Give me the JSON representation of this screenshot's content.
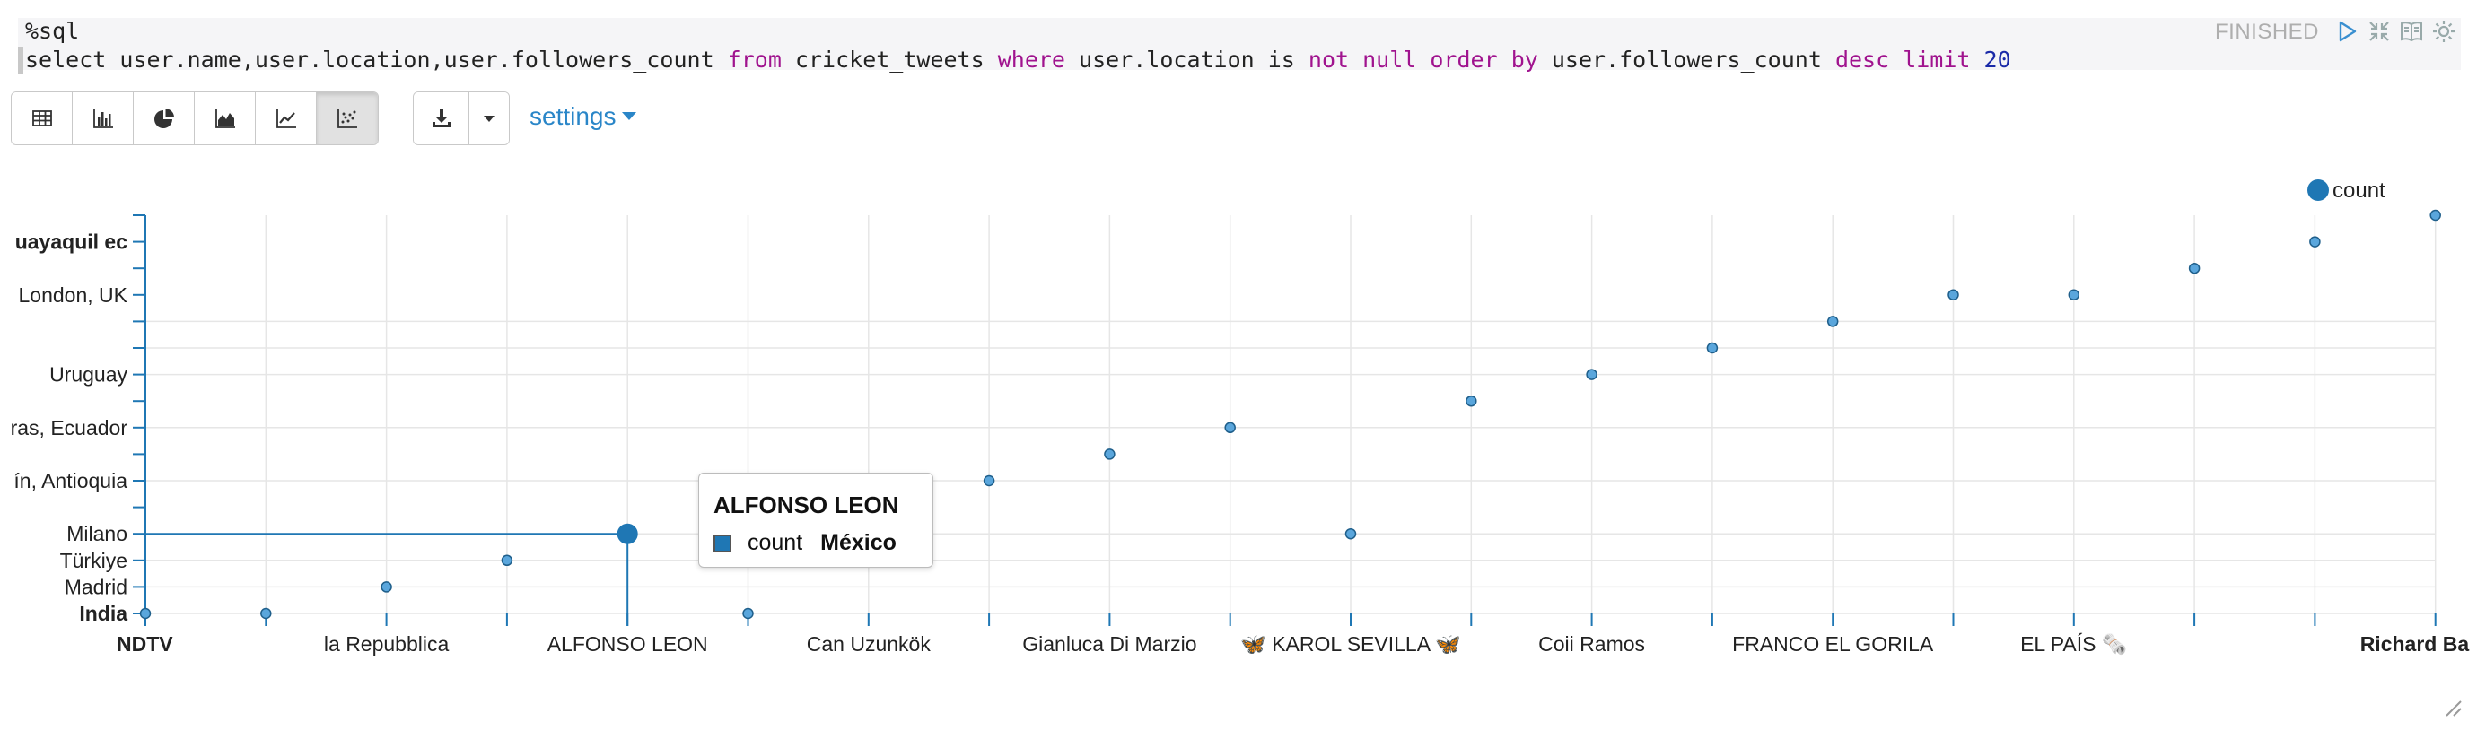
{
  "paragraph": {
    "interpreter": "%sql",
    "query": {
      "t1": "select user.name,user.location,user.followers_count ",
      "k1": "from",
      "t2": " cricket_tweets ",
      "k2": "where",
      "t3": " user.location is ",
      "k3": "not null order by",
      "t4": " user.followers_count ",
      "k4": "desc limit",
      "t5": " ",
      "n1": "20"
    },
    "status": "FINISHED",
    "controls": [
      "run-icon",
      "collapse-icon",
      "book-icon",
      "gear-icon"
    ]
  },
  "toolbar": {
    "views": [
      "table-icon",
      "bar-chart-icon",
      "pie-chart-icon",
      "area-chart-icon",
      "line-chart-icon",
      "scatter-chart-icon"
    ],
    "active_view": "scatter-chart-icon",
    "download": "download-icon",
    "settings_label": "settings"
  },
  "chart_data": {
    "type": "scatter",
    "legend": [
      "count"
    ],
    "color": "#1f77b4",
    "x_categories": [
      "NDTV",
      "",
      "la Repubblica",
      "",
      "ALFONSO LEON",
      "",
      "Can Uzunkök",
      "",
      "Gianluca Di Marzio",
      "",
      "🦋 KAROL SEVILLA 🦋",
      "",
      "Coii Ramos",
      "",
      "FRANCO EL GORILA",
      "",
      "EL PAÍS 🗞️",
      "",
      "",
      "Richard Ba"
    ],
    "y_categories": [
      "India",
      "Madrid",
      "Türkiye",
      "Milano",
      "ín, Antioquia",
      "ras, Ecuador",
      "Uruguay",
      "London, UK",
      "uayaquil ec"
    ],
    "y_minor_levels": 15,
    "points": [
      {
        "x": 0,
        "y": 0
      },
      {
        "x": 1,
        "y": 0
      },
      {
        "x": 2,
        "y": 1
      },
      {
        "x": 3,
        "y": 2
      },
      {
        "x": 4,
        "y": 3
      },
      {
        "x": 5,
        "y": 0
      },
      {
        "x": 7,
        "y": 5
      },
      {
        "x": 8,
        "y": 6
      },
      {
        "x": 9,
        "y": 7
      },
      {
        "x": 10,
        "y": 3
      },
      {
        "x": 11,
        "y": 8
      },
      {
        "x": 12,
        "y": 9
      },
      {
        "x": 13,
        "y": 10
      },
      {
        "x": 14,
        "y": 11
      },
      {
        "x": 15,
        "y": 12
      },
      {
        "x": 16,
        "y": 12
      },
      {
        "x": 17,
        "y": 13
      },
      {
        "x": 18,
        "y": 14
      },
      {
        "x": 19,
        "y": 15
      }
    ],
    "highlighted_index": 4
  },
  "tooltip": {
    "title": "ALFONSO LEON",
    "series": "count",
    "value": "México"
  }
}
